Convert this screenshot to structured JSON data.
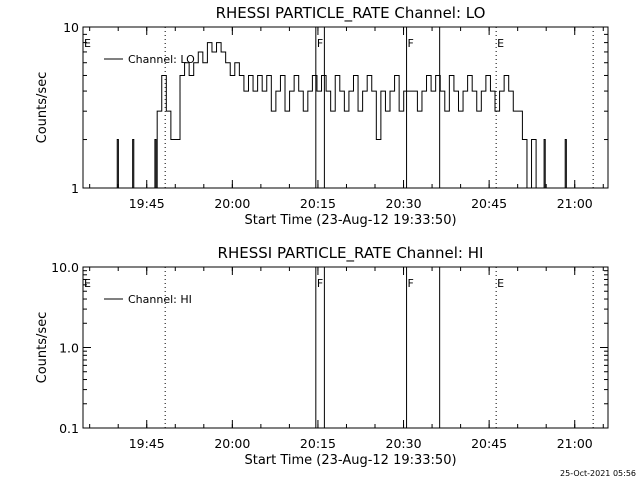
{
  "chart_data": [
    {
      "type": "line",
      "title": "RHESSI PARTICLE_RATE Channel: LO",
      "xlabel": "Start Time (23-Aug-12 19:33:50)",
      "ylabel": "Counts/sec",
      "y_scale": "log",
      "ylim": [
        1,
        10
      ],
      "y_ticks": [
        {
          "v": 1,
          "label": "1"
        },
        {
          "v": 10,
          "label": "10"
        }
      ],
      "x_unit": "minutes after 19:33:50",
      "xlim": [
        0,
        92
      ],
      "x_ticks": [
        {
          "v": 11.17,
          "label": "19:45"
        },
        {
          "v": 26.17,
          "label": "20:00"
        },
        {
          "v": 41.17,
          "label": "20:15"
        },
        {
          "v": 56.17,
          "label": "20:30"
        },
        {
          "v": 71.17,
          "label": "20:45"
        },
        {
          "v": 86.17,
          "label": "21:00"
        }
      ],
      "legend": {
        "label": "Channel: LO",
        "position": "top-left"
      },
      "series": [
        {
          "name": "Channel: LO",
          "points": [
            [
              5.8,
              1
            ],
            [
              6.0,
              2
            ],
            [
              6.2,
              1
            ],
            [
              8.5,
              1
            ],
            [
              8.7,
              2
            ],
            [
              8.9,
              1
            ],
            [
              12.4,
              1
            ],
            [
              12.6,
              2
            ],
            [
              12.8,
              1
            ],
            [
              13.0,
              3
            ],
            [
              13.8,
              5
            ],
            [
              14.6,
              3
            ],
            [
              15.4,
              2
            ],
            [
              16.2,
              2
            ],
            [
              17.0,
              5
            ],
            [
              17.4,
              5
            ],
            [
              17.8,
              6
            ],
            [
              18.6,
              5
            ],
            [
              19.4,
              6
            ],
            [
              20.2,
              7
            ],
            [
              21.0,
              6
            ],
            [
              21.8,
              8
            ],
            [
              22.6,
              7
            ],
            [
              23.4,
              8
            ],
            [
              24.2,
              7
            ],
            [
              25.0,
              6
            ],
            [
              25.8,
              5
            ],
            [
              26.6,
              6
            ],
            [
              27.4,
              5
            ],
            [
              28.2,
              4
            ],
            [
              29.0,
              5
            ],
            [
              29.8,
              4
            ],
            [
              30.6,
              5
            ],
            [
              31.4,
              4
            ],
            [
              32.2,
              5
            ],
            [
              33.0,
              3
            ],
            [
              33.8,
              4
            ],
            [
              34.6,
              5
            ],
            [
              35.4,
              3
            ],
            [
              36.2,
              4
            ],
            [
              37.0,
              5
            ],
            [
              37.8,
              4
            ],
            [
              38.6,
              3
            ],
            [
              39.4,
              4
            ],
            [
              40.2,
              5
            ],
            [
              41.0,
              4
            ],
            [
              41.8,
              5
            ],
            [
              42.6,
              4
            ],
            [
              43.4,
              3
            ],
            [
              44.2,
              5
            ],
            [
              45.0,
              4
            ],
            [
              45.8,
              3
            ],
            [
              46.6,
              4
            ],
            [
              47.4,
              5
            ],
            [
              48.2,
              3
            ],
            [
              49.0,
              4
            ],
            [
              49.8,
              5
            ],
            [
              50.6,
              4
            ],
            [
              51.4,
              2
            ],
            [
              52.2,
              4
            ],
            [
              53.0,
              3
            ],
            [
              53.8,
              4
            ],
            [
              54.6,
              5
            ],
            [
              55.4,
              3
            ],
            [
              56.2,
              4
            ],
            [
              57.0,
              4
            ],
            [
              57.8,
              4
            ],
            [
              58.6,
              3
            ],
            [
              59.4,
              4
            ],
            [
              60.2,
              5
            ],
            [
              61.0,
              4
            ],
            [
              61.8,
              5
            ],
            [
              62.6,
              4
            ],
            [
              63.4,
              3
            ],
            [
              64.2,
              5
            ],
            [
              65.0,
              4
            ],
            [
              65.8,
              3
            ],
            [
              66.6,
              4
            ],
            [
              67.4,
              5
            ],
            [
              68.2,
              4
            ],
            [
              69.0,
              3
            ],
            [
              69.8,
              4
            ],
            [
              70.6,
              5
            ],
            [
              71.4,
              4
            ],
            [
              72.2,
              3
            ],
            [
              73.0,
              4
            ],
            [
              73.8,
              5
            ],
            [
              74.6,
              4
            ],
            [
              75.4,
              3
            ],
            [
              76.2,
              3
            ],
            [
              77.0,
              2
            ],
            [
              77.8,
              1
            ],
            [
              78.6,
              2
            ],
            [
              79.4,
              1
            ],
            [
              80.2,
              1
            ],
            [
              80.6,
              1
            ],
            [
              80.8,
              2
            ],
            [
              81.0,
              1
            ],
            [
              84.3,
              1
            ],
            [
              84.5,
              2
            ],
            [
              84.7,
              1
            ]
          ]
        }
      ],
      "vlines_solid": [
        40.8,
        42.3,
        56.7,
        62.5
      ],
      "vlines_dotted": [
        14.4,
        72.4,
        89.4
      ],
      "markers": [
        {
          "x": 0,
          "label": "E"
        },
        {
          "x": 40.8,
          "label": "F"
        },
        {
          "x": 56.7,
          "label": "F"
        },
        {
          "x": 72.4,
          "label": "E"
        }
      ]
    },
    {
      "type": "line",
      "title": "RHESSI PARTICLE_RATE Channel: HI",
      "xlabel": "Start Time (23-Aug-12 19:33:50)",
      "ylabel": "Counts/sec",
      "y_scale": "log",
      "ylim": [
        0.1,
        10
      ],
      "y_ticks": [
        {
          "v": 0.1,
          "label": "0.1"
        },
        {
          "v": 1,
          "label": "1.0"
        },
        {
          "v": 10,
          "label": "10.0"
        }
      ],
      "x_unit": "minutes after 19:33:50",
      "xlim": [
        0,
        92
      ],
      "x_ticks": [
        {
          "v": 11.17,
          "label": "19:45"
        },
        {
          "v": 26.17,
          "label": "20:00"
        },
        {
          "v": 41.17,
          "label": "20:15"
        },
        {
          "v": 56.17,
          "label": "20:30"
        },
        {
          "v": 71.17,
          "label": "20:45"
        },
        {
          "v": 86.17,
          "label": "21:00"
        }
      ],
      "legend": {
        "label": "Channel: HI",
        "position": "top-left"
      },
      "series": [
        {
          "name": "Channel: HI",
          "points": []
        }
      ],
      "vlines_solid": [
        40.8,
        42.3,
        56.7,
        62.5
      ],
      "vlines_dotted": [
        14.4,
        72.4,
        89.4
      ],
      "markers": [
        {
          "x": 0,
          "label": "E"
        },
        {
          "x": 40.8,
          "label": "F"
        },
        {
          "x": 56.7,
          "label": "F"
        },
        {
          "x": 72.4,
          "label": "E"
        }
      ]
    }
  ],
  "footer": {
    "timestamp": "25-Oct-2021 05:56"
  }
}
